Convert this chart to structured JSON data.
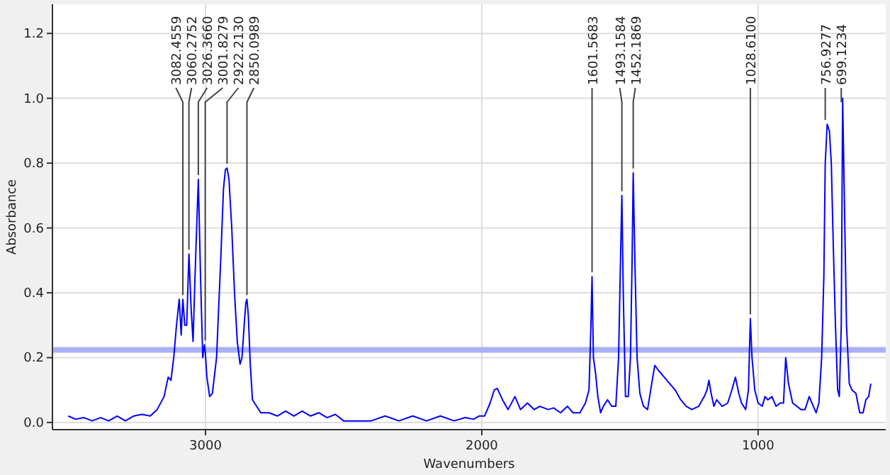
{
  "chart_data": {
    "type": "line",
    "xlabel": "Wavenumbers",
    "ylabel": "Absorbance",
    "xlim": [
      3554,
      538
    ],
    "ylim": [
      -0.022,
      1.29
    ],
    "xticks": [
      3000,
      2000,
      1000
    ],
    "yticks": [
      {
        "value": 0,
        "label": "0.0"
      },
      {
        "value": 0.2,
        "label": "0.2"
      },
      {
        "value": 0.4,
        "label": "0.4"
      },
      {
        "value": 0.6,
        "label": "0.6"
      },
      {
        "value": 0.8,
        "label": "0.8"
      },
      {
        "value": 1,
        "label": "1.0"
      },
      {
        "value": 1.2,
        "label": "1.2"
      }
    ],
    "grid": true,
    "series": [
      {
        "color": "#0000ff",
        "x": [
          3497,
          3470,
          3440,
          3410,
          3380,
          3350,
          3320,
          3290,
          3260,
          3230,
          3200,
          3175,
          3150,
          3135,
          3125,
          3115,
          3105,
          3095,
          3088,
          3082,
          3075,
          3068,
          3060,
          3052,
          3045,
          3038,
          3032,
          3026,
          3018,
          3010,
          3004,
          3001,
          2995,
          2985,
          2975,
          2960,
          2945,
          2935,
          2928,
          2922,
          2915,
          2905,
          2895,
          2885,
          2875,
          2868,
          2860,
          2854,
          2850,
          2845,
          2838,
          2830,
          2815,
          2800,
          2770,
          2740,
          2710,
          2680,
          2650,
          2620,
          2590,
          2560,
          2530,
          2500,
          2470,
          2440,
          2400,
          2350,
          2300,
          2250,
          2200,
          2150,
          2100,
          2060,
          2030,
          2010,
          1990,
          1970,
          1955,
          1944,
          1925,
          1905,
          1880,
          1860,
          1835,
          1810,
          1790,
          1760,
          1740,
          1715,
          1690,
          1670,
          1645,
          1625,
          1612,
          1605,
          1601,
          1596,
          1588,
          1580,
          1570,
          1560,
          1545,
          1530,
          1515,
          1505,
          1498,
          1493,
          1488,
          1480,
          1470,
          1462,
          1456,
          1452,
          1446,
          1438,
          1428,
          1415,
          1400,
          1385,
          1374,
          1360,
          1340,
          1320,
          1300,
          1280,
          1260,
          1240,
          1215,
          1195,
          1185,
          1178,
          1170,
          1160,
          1150,
          1130,
          1110,
          1095,
          1082,
          1070,
          1060,
          1045,
          1035,
          1028,
          1022,
          1012,
          1000,
          985,
          975,
          965,
          950,
          935,
          920,
          908,
          900,
          890,
          875,
          860,
          845,
          830,
          815,
          800,
          790,
          780,
          770,
          762,
          757,
          750,
          742,
          735,
          728,
          720,
          712,
          706,
          699,
          694,
          688,
          680,
          670,
          660,
          646,
          632,
          620,
          610,
          600,
          592
        ],
        "values": [
          0.02,
          0.01,
          0.015,
          0.005,
          0.015,
          0.005,
          0.02,
          0.005,
          0.02,
          0.025,
          0.02,
          0.04,
          0.08,
          0.14,
          0.13,
          0.2,
          0.3,
          0.38,
          0.27,
          0.38,
          0.3,
          0.3,
          0.52,
          0.35,
          0.25,
          0.45,
          0.6,
          0.75,
          0.45,
          0.2,
          0.24,
          0.22,
          0.14,
          0.08,
          0.09,
          0.2,
          0.5,
          0.72,
          0.78,
          0.785,
          0.75,
          0.6,
          0.4,
          0.25,
          0.18,
          0.2,
          0.3,
          0.37,
          0.38,
          0.33,
          0.18,
          0.07,
          0.05,
          0.03,
          0.03,
          0.02,
          0.035,
          0.02,
          0.035,
          0.02,
          0.03,
          0.015,
          0.025,
          0.005,
          0.005,
          0.005,
          0.005,
          0.02,
          0.005,
          0.02,
          0.005,
          0.02,
          0.005,
          0.015,
          0.01,
          0.02,
          0.02,
          0.06,
          0.1,
          0.105,
          0.07,
          0.04,
          0.08,
          0.04,
          0.06,
          0.04,
          0.05,
          0.04,
          0.045,
          0.03,
          0.05,
          0.03,
          0.03,
          0.06,
          0.1,
          0.3,
          0.45,
          0.2,
          0.15,
          0.08,
          0.03,
          0.05,
          0.07,
          0.05,
          0.05,
          0.2,
          0.5,
          0.7,
          0.4,
          0.08,
          0.08,
          0.2,
          0.5,
          0.77,
          0.5,
          0.2,
          0.09,
          0.05,
          0.04,
          0.12,
          0.176,
          0.16,
          0.14,
          0.12,
          0.1,
          0.07,
          0.05,
          0.04,
          0.05,
          0.08,
          0.1,
          0.13,
          0.09,
          0.05,
          0.07,
          0.05,
          0.06,
          0.1,
          0.14,
          0.09,
          0.06,
          0.04,
          0.1,
          0.32,
          0.2,
          0.1,
          0.06,
          0.05,
          0.08,
          0.07,
          0.08,
          0.05,
          0.06,
          0.06,
          0.2,
          0.12,
          0.06,
          0.05,
          0.04,
          0.04,
          0.08,
          0.05,
          0.03,
          0.06,
          0.2,
          0.45,
          0.8,
          0.92,
          0.9,
          0.8,
          0.55,
          0.3,
          0.1,
          0.08,
          0.3,
          1.0,
          0.7,
          0.3,
          0.12,
          0.1,
          0.09,
          0.03,
          0.03,
          0.07,
          0.08,
          0.12
        ]
      }
    ],
    "ref_lines": [
      {
        "axis": "y",
        "value": 0.224,
        "color": "#aab0f8"
      }
    ],
    "annotations": [
      {
        "text": "3082.4559",
        "x": 3082,
        "y": 0.38
      },
      {
        "text": "3060.2752",
        "x": 3060,
        "y": 0.52
      },
      {
        "text": "3026.3660",
        "x": 3026,
        "y": 0.75
      },
      {
        "text": "3001.8279",
        "x": 3001,
        "y": 0.24
      },
      {
        "text": "2922.2130",
        "x": 2922,
        "y": 0.785
      },
      {
        "text": "2850.0989",
        "x": 2850,
        "y": 0.38
      },
      {
        "text": "1601.5683",
        "x": 1601,
        "y": 0.45
      },
      {
        "text": "1493.1584",
        "x": 1493,
        "y": 0.7
      },
      {
        "text": "1452.1869",
        "x": 1452,
        "y": 0.77
      },
      {
        "text": "1028.6100",
        "x": 1028,
        "y": 0.32
      },
      {
        "text": "756.9277",
        "x": 757,
        "y": 0.92
      },
      {
        "text": "699.1234",
        "x": 699,
        "y": 1.0
      }
    ]
  }
}
